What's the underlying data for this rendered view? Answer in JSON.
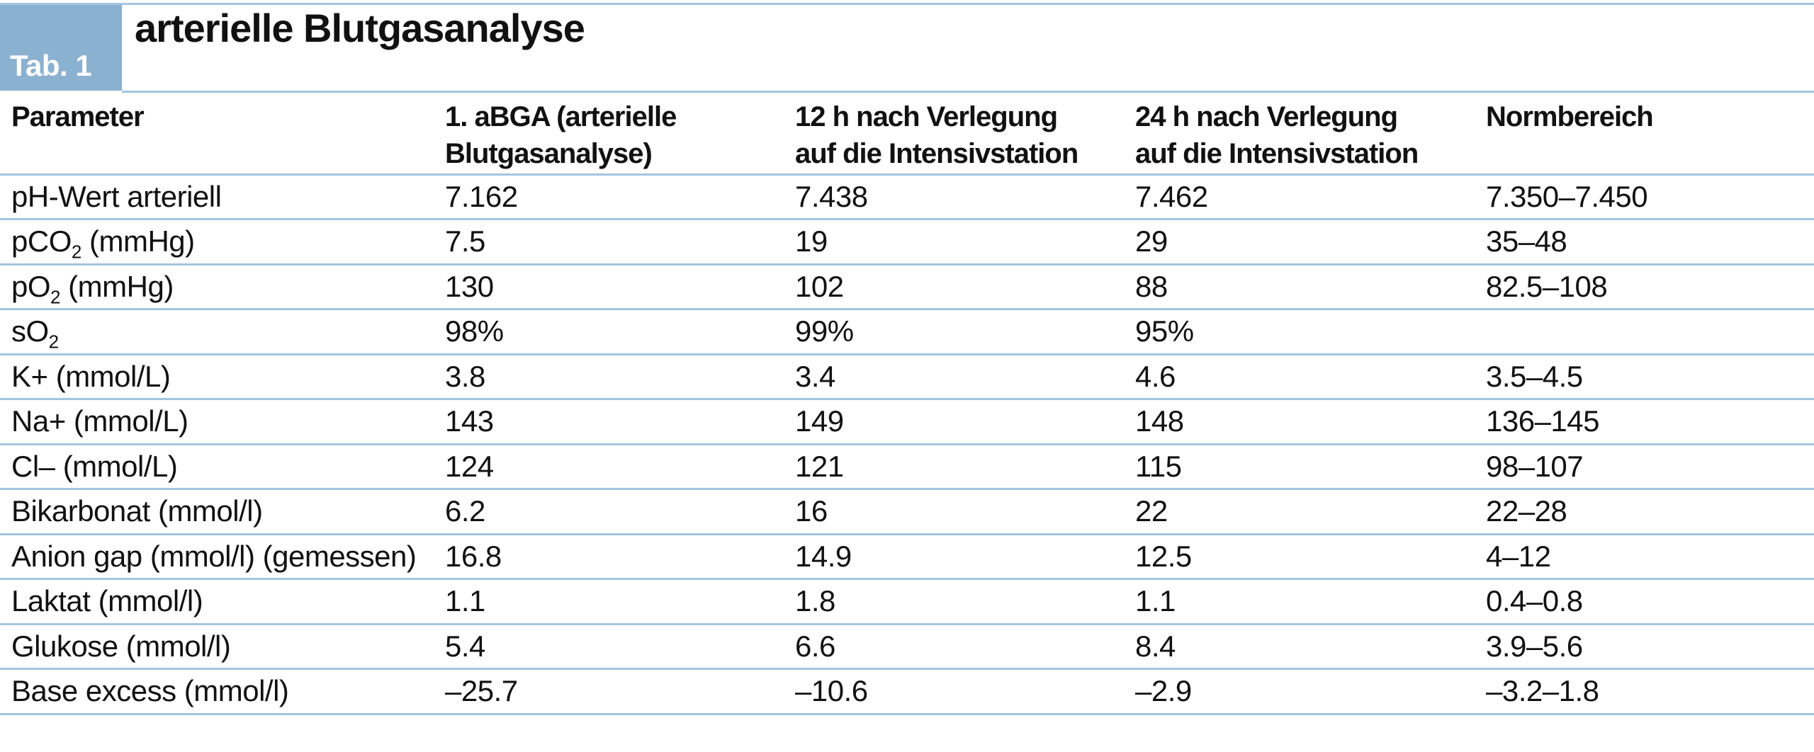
{
  "table": {
    "tab_label": "Tab. 1",
    "title": "arterielle Blutgasanalyse",
    "columns": [
      {
        "lines": [
          "Parameter"
        ]
      },
      {
        "lines": [
          "1. aBGA (arterielle",
          "Blutgasanalyse)"
        ]
      },
      {
        "lines": [
          "12 h nach Verlegung",
          "auf die Intensivstation"
        ]
      },
      {
        "lines": [
          "24 h nach Verlegung",
          "auf die Intensivstation"
        ]
      },
      {
        "lines": [
          "Normbereich"
        ]
      }
    ],
    "rows": [
      {
        "param": {
          "pre": "pH-Wert arteriell",
          "sub": "",
          "post": ""
        },
        "values": [
          "7.162",
          "7.438",
          "7.462",
          "7.350–7.450"
        ]
      },
      {
        "param": {
          "pre": "pCO",
          "sub": "2",
          "post": " (mmHg)"
        },
        "values": [
          "7.5",
          "19",
          "29",
          "35–48"
        ]
      },
      {
        "param": {
          "pre": "pO",
          "sub": "2",
          "post": " (mmHg)"
        },
        "values": [
          "130",
          "102",
          "88",
          "82.5–108"
        ]
      },
      {
        "param": {
          "pre": "sO",
          "sub": "2",
          "post": ""
        },
        "values": [
          "98%",
          "99%",
          "95%",
          ""
        ]
      },
      {
        "param": {
          "pre": "K+ (mmol/L)",
          "sub": "",
          "post": ""
        },
        "values": [
          "3.8",
          "3.4",
          "4.6",
          "3.5–4.5"
        ]
      },
      {
        "param": {
          "pre": "Na+ (mmol/L)",
          "sub": "",
          "post": ""
        },
        "values": [
          "143",
          "149",
          "148",
          "136–145"
        ]
      },
      {
        "param": {
          "pre": "Cl– (mmol/L)",
          "sub": "",
          "post": ""
        },
        "values": [
          "124",
          "121",
          "115",
          "98–107"
        ]
      },
      {
        "param": {
          "pre": "Bikarbonat (mmol/l)",
          "sub": "",
          "post": ""
        },
        "values": [
          "6.2",
          "16",
          "22",
          "22–28"
        ]
      },
      {
        "param": {
          "pre": "Anion gap (mmol/l) (gemessen)",
          "sub": "",
          "post": ""
        },
        "values": [
          "16.8",
          "14.9",
          "12.5",
          "4–12"
        ]
      },
      {
        "param": {
          "pre": "Laktat (mmol/l)",
          "sub": "",
          "post": ""
        },
        "values": [
          "1.1",
          "1.8",
          "1.1",
          "0.4–0.8"
        ]
      },
      {
        "param": {
          "pre": "Glukose (mmol/l)",
          "sub": "",
          "post": ""
        },
        "values": [
          "5.4",
          "6.6",
          "8.4",
          "3.9–5.6"
        ]
      },
      {
        "param": {
          "pre": "Base excess (mmol/l)",
          "sub": "",
          "post": ""
        },
        "values": [
          "–25.7",
          "–10.6",
          "–2.9",
          "–3.2–1.8"
        ]
      }
    ]
  },
  "colors": {
    "tab_box_blue": "#8bb1d0",
    "rule_blue": "#a3c4de"
  }
}
